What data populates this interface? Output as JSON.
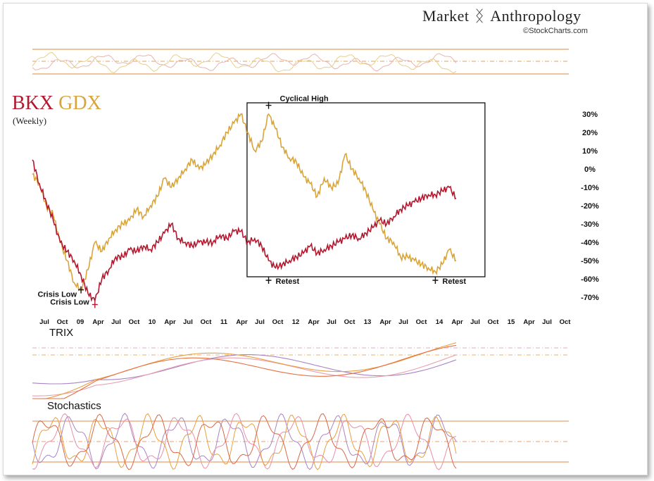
{
  "brand": {
    "name_part1": "Market",
    "name_part2": "Anthropology",
    "icon": "dna-helix-icon",
    "source": "StockCharts.com",
    "source_icon": "copyright-icon"
  },
  "chart_data": {
    "type": "line",
    "title_series": [
      "BKX",
      "GDX"
    ],
    "subtitle": "(Weekly)",
    "colors": {
      "BKX": "#b3182f",
      "GDX": "#d9a53a"
    },
    "x_labels": [
      "Jul",
      "Oct",
      "09",
      "Apr",
      "Jul",
      "Oct",
      "10",
      "Apr",
      "Jul",
      "Oct",
      "11",
      "Apr",
      "Jul",
      "Oct",
      "12",
      "Apr",
      "Jul",
      "Oct",
      "13",
      "Apr",
      "Jul",
      "Oct",
      "14",
      "Apr",
      "Jul",
      "Oct",
      "15",
      "Apr",
      "Jul",
      "Oct"
    ],
    "y_ticks": [
      "30%",
      "20%",
      "10%",
      "0%",
      "-10%",
      "-20%",
      "-30%",
      "-40%",
      "-50%",
      "-60%",
      "-70%"
    ],
    "ylim": [
      -70,
      30
    ],
    "series": [
      {
        "name": "GDX",
        "points": [
          [
            0,
            -3
          ],
          [
            1,
            -8
          ],
          [
            2,
            -20
          ],
          [
            3,
            -25
          ],
          [
            4,
            -40
          ],
          [
            5,
            -50
          ],
          [
            6,
            -62
          ],
          [
            7,
            -66
          ],
          [
            8,
            -55
          ],
          [
            9,
            -40
          ],
          [
            10,
            -45
          ],
          [
            11,
            -38
          ],
          [
            12,
            -33
          ],
          [
            13,
            -30
          ],
          [
            14,
            -28
          ],
          [
            15,
            -22
          ],
          [
            16,
            -26
          ],
          [
            17,
            -20
          ],
          [
            18,
            -15
          ],
          [
            19,
            -5
          ],
          [
            20,
            -10
          ],
          [
            21,
            -5
          ],
          [
            22,
            0
          ],
          [
            23,
            5
          ],
          [
            24,
            0
          ],
          [
            25,
            3
          ],
          [
            26,
            8
          ],
          [
            27,
            13
          ],
          [
            28,
            20
          ],
          [
            29,
            25
          ],
          [
            30,
            30
          ],
          [
            31,
            20
          ],
          [
            32,
            10
          ],
          [
            33,
            15
          ],
          [
            34,
            30
          ],
          [
            35,
            22
          ],
          [
            36,
            12
          ],
          [
            37,
            6
          ],
          [
            38,
            4
          ],
          [
            39,
            -4
          ],
          [
            40,
            -8
          ],
          [
            41,
            -15
          ],
          [
            42,
            -5
          ],
          [
            43,
            -10
          ],
          [
            44,
            -8
          ],
          [
            45,
            8
          ],
          [
            46,
            0
          ],
          [
            47,
            -5
          ],
          [
            48,
            -12
          ],
          [
            49,
            -22
          ],
          [
            50,
            -30
          ],
          [
            51,
            -38
          ],
          [
            52,
            -40
          ],
          [
            53,
            -48
          ],
          [
            54,
            -48
          ],
          [
            55,
            -50
          ],
          [
            56,
            -52
          ],
          [
            57,
            -54
          ],
          [
            58,
            -56
          ],
          [
            59,
            -52
          ],
          [
            60,
            -44
          ],
          [
            61,
            -50
          ]
        ]
      },
      {
        "name": "BKX",
        "points": [
          [
            0,
            5
          ],
          [
            1,
            -8
          ],
          [
            2,
            -18
          ],
          [
            3,
            -28
          ],
          [
            4,
            -40
          ],
          [
            5,
            -45
          ],
          [
            6,
            -50
          ],
          [
            7,
            -58
          ],
          [
            8,
            -68
          ],
          [
            9,
            -72
          ],
          [
            10,
            -60
          ],
          [
            11,
            -55
          ],
          [
            12,
            -48
          ],
          [
            13,
            -48
          ],
          [
            14,
            -44
          ],
          [
            15,
            -45
          ],
          [
            16,
            -42
          ],
          [
            17,
            -44
          ],
          [
            18,
            -40
          ],
          [
            19,
            -35
          ],
          [
            20,
            -30
          ],
          [
            21,
            -38
          ],
          [
            22,
            -40
          ],
          [
            23,
            -42
          ],
          [
            24,
            -40
          ],
          [
            25,
            -40
          ],
          [
            26,
            -40
          ],
          [
            27,
            -36
          ],
          [
            28,
            -38
          ],
          [
            29,
            -34
          ],
          [
            30,
            -34
          ],
          [
            31,
            -40
          ],
          [
            32,
            -38
          ],
          [
            33,
            -42
          ],
          [
            34,
            -50
          ],
          [
            35,
            -54
          ],
          [
            36,
            -52
          ],
          [
            37,
            -50
          ],
          [
            38,
            -48
          ],
          [
            39,
            -46
          ],
          [
            40,
            -42
          ],
          [
            41,
            -46
          ],
          [
            42,
            -44
          ],
          [
            43,
            -42
          ],
          [
            44,
            -40
          ],
          [
            45,
            -38
          ],
          [
            46,
            -36
          ],
          [
            47,
            -38
          ],
          [
            48,
            -35
          ],
          [
            49,
            -32
          ],
          [
            50,
            -28
          ],
          [
            51,
            -30
          ],
          [
            52,
            -26
          ],
          [
            53,
            -22
          ],
          [
            54,
            -20
          ],
          [
            55,
            -18
          ],
          [
            56,
            -16
          ],
          [
            57,
            -14
          ],
          [
            58,
            -14
          ],
          [
            59,
            -12
          ],
          [
            60,
            -10
          ],
          [
            61,
            -16
          ]
        ]
      }
    ],
    "annotations": [
      {
        "label": "Cyclical High",
        "x": 34,
        "y": 34
      },
      {
        "label": "Retest",
        "x": 34,
        "y": -60
      },
      {
        "label": "Retest",
        "x": 58,
        "y": -60
      },
      {
        "label": "Crisis Low",
        "x": 7,
        "y": -66
      },
      {
        "label": "Crisis Low",
        "x": 9,
        "y": -74
      }
    ],
    "highlight_box": {
      "x_from": 31,
      "x_to": 62
    },
    "subpanels": [
      {
        "name": "top-oscillator"
      },
      {
        "name": "TRIX",
        "label": "TRIX"
      },
      {
        "name": "Stochastics",
        "label": "Stochastics"
      }
    ]
  }
}
